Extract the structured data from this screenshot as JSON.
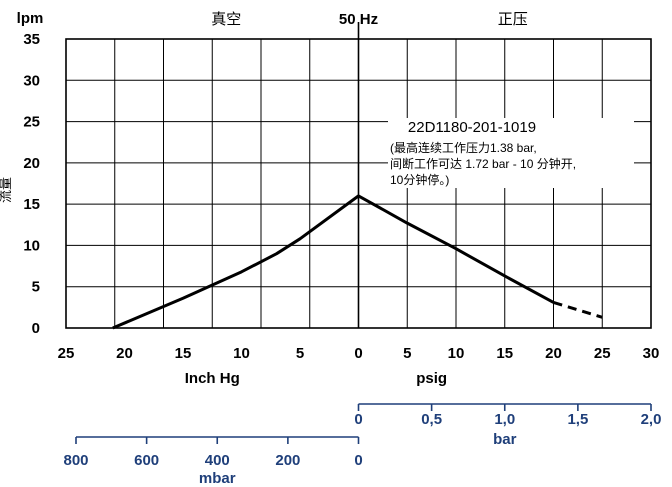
{
  "chart_data": {
    "type": "line",
    "title": "50 Hz",
    "ylabel_unit": "lpm",
    "ylabel": "流量",
    "region_left_label": "真空",
    "region_right_label": "正压",
    "xlabel_left": "Inch Hg",
    "xlabel_right": "psig",
    "x_ticks_left": [
      "25",
      "20",
      "15",
      "10",
      "5",
      "0"
    ],
    "x_ticks_right": [
      "5",
      "10",
      "15",
      "20",
      "25",
      "30"
    ],
    "y_ticks": [
      "0",
      "5",
      "10",
      "15",
      "20",
      "25",
      "30",
      "35"
    ],
    "ylim": [
      0,
      35
    ],
    "xlim_inhg": [
      25,
      0
    ],
    "xlim_psig": [
      0,
      30
    ],
    "grid": true,
    "series": [
      {
        "name": "22D1180-201-1019",
        "vacuum_points": [
          [
            21,
            0
          ],
          [
            15,
            3.6
          ],
          [
            10,
            6.8
          ],
          [
            7,
            9
          ],
          [
            5,
            10.8
          ],
          [
            0,
            16
          ]
        ],
        "pressure_points": [
          [
            0,
            16
          ],
          [
            5,
            12.7
          ],
          [
            10,
            9.6
          ],
          [
            15,
            6.3
          ],
          [
            20,
            3.1
          ]
        ],
        "pressure_dashed_points": [
          [
            20,
            3.1
          ],
          [
            25,
            1.3
          ]
        ]
      }
    ],
    "annotation": {
      "model": "22D1180-201-1019",
      "lines": [
        "(最高连续工作压力1.38 bar,",
        "间断工作可达 1.72 bar - 10 分钟开,",
        "10分钟停。)"
      ]
    },
    "bar_axis": {
      "label": "bar",
      "ticks": [
        "0",
        "0,5",
        "1,0",
        "1,5",
        "2,0"
      ]
    },
    "mbar_axis": {
      "label": "mbar",
      "ticks": [
        "800",
        "600",
        "400",
        "200",
        "0"
      ]
    }
  },
  "colors": {
    "line": "#000000",
    "grid": "#000000",
    "secondary_axis": "#1f3f7a"
  }
}
